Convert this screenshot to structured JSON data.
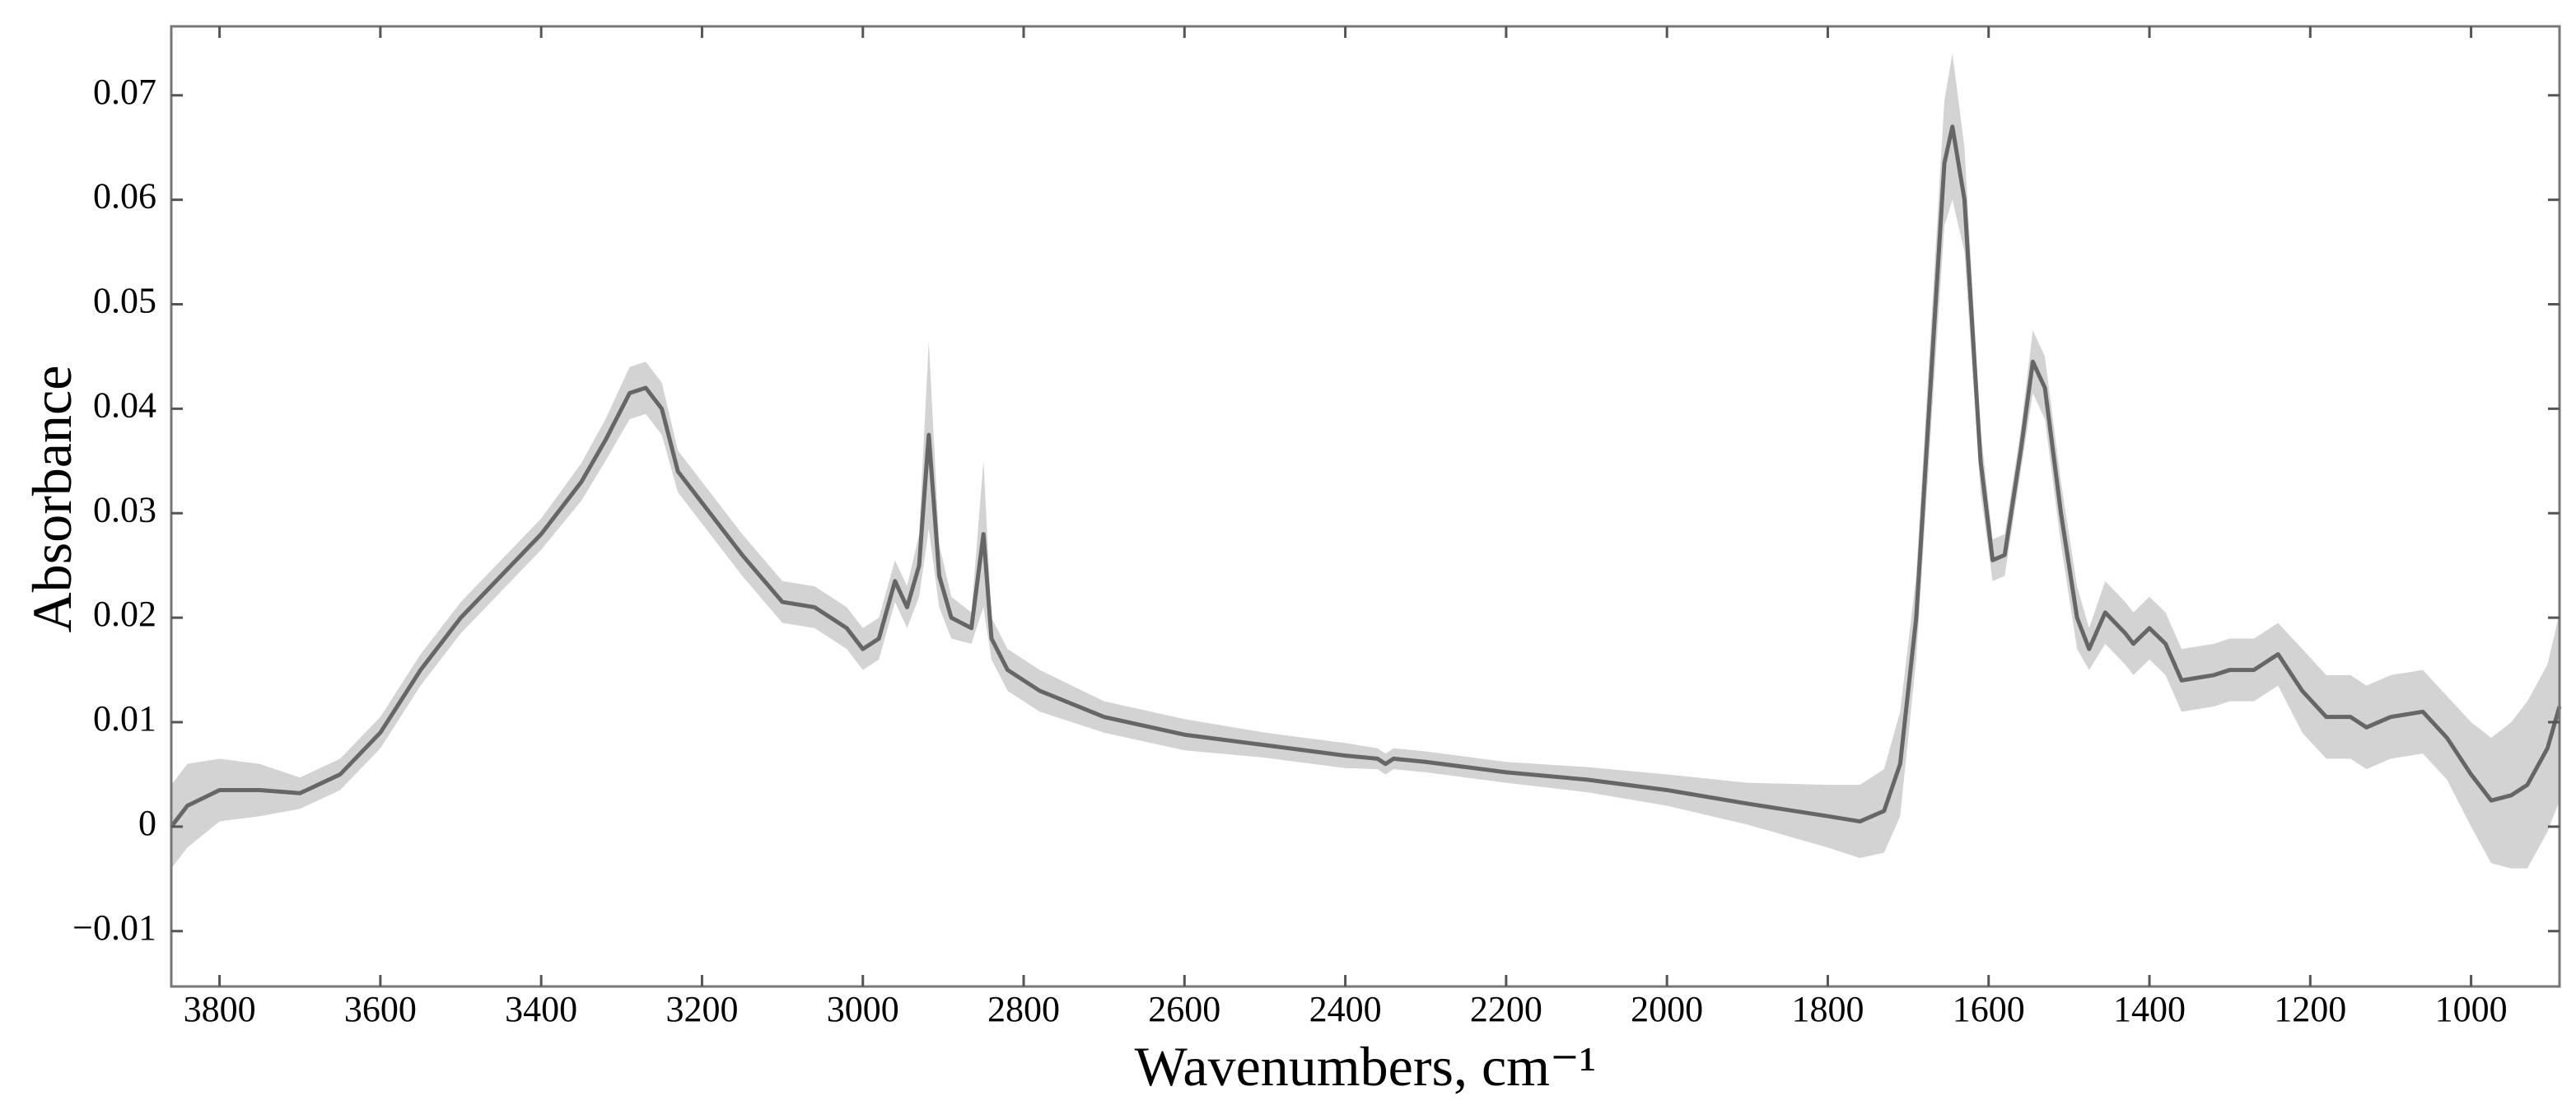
{
  "chart_data": {
    "type": "line",
    "xlabel": "Wavenumbers, cm⁻¹",
    "ylabel": "Absorbance",
    "x": [
      3860,
      3840,
      3800,
      3750,
      3700,
      3650,
      3600,
      3550,
      3500,
      3450,
      3400,
      3350,
      3320,
      3290,
      3270,
      3250,
      3230,
      3200,
      3150,
      3100,
      3060,
      3020,
      3000,
      2980,
      2960,
      2945,
      2930,
      2918,
      2905,
      2890,
      2865,
      2850,
      2840,
      2820,
      2780,
      2700,
      2600,
      2500,
      2400,
      2360,
      2350,
      2340,
      2300,
      2200,
      2100,
      2000,
      1900,
      1800,
      1760,
      1730,
      1710,
      1690,
      1670,
      1655,
      1645,
      1630,
      1610,
      1595,
      1580,
      1560,
      1545,
      1530,
      1510,
      1490,
      1475,
      1455,
      1430,
      1420,
      1400,
      1380,
      1360,
      1320,
      1300,
      1270,
      1240,
      1210,
      1180,
      1150,
      1130,
      1100,
      1060,
      1030,
      1000,
      975,
      950,
      930,
      905,
      890
    ],
    "series": [
      {
        "color": "#666666",
        "values": [
          0.0,
          0.002,
          0.0035,
          0.0035,
          0.0032,
          0.005,
          0.009,
          0.015,
          0.02,
          0.024,
          0.028,
          0.033,
          0.037,
          0.0415,
          0.042,
          0.04,
          0.034,
          0.031,
          0.026,
          0.0215,
          0.021,
          0.019,
          0.017,
          0.018,
          0.0235,
          0.021,
          0.025,
          0.0375,
          0.024,
          0.02,
          0.019,
          0.028,
          0.018,
          0.015,
          0.013,
          0.0105,
          0.0088,
          0.0078,
          0.0068,
          0.0065,
          0.006,
          0.0065,
          0.0062,
          0.0052,
          0.0045,
          0.0035,
          0.0022,
          0.001,
          0.0005,
          0.0015,
          0.006,
          0.02,
          0.045,
          0.0635,
          0.067,
          0.06,
          0.035,
          0.0255,
          0.026,
          0.036,
          0.0445,
          0.042,
          0.03,
          0.02,
          0.017,
          0.0205,
          0.0185,
          0.0175,
          0.019,
          0.0175,
          0.014,
          0.0145,
          0.015,
          0.015,
          0.0165,
          0.013,
          0.0105,
          0.0105,
          0.0095,
          0.0105,
          0.011,
          0.0085,
          0.005,
          0.0025,
          0.003,
          0.004,
          0.0075,
          0.0115
        ]
      }
    ],
    "band": {
      "color": "#d3d3d3",
      "lower": [
        -0.004,
        -0.002,
        0.0005,
        0.001,
        0.0017,
        0.0035,
        0.0075,
        0.0135,
        0.0185,
        0.0225,
        0.0265,
        0.0312,
        0.035,
        0.039,
        0.0395,
        0.0375,
        0.032,
        0.029,
        0.024,
        0.0195,
        0.019,
        0.017,
        0.015,
        0.016,
        0.0215,
        0.019,
        0.022,
        0.0285,
        0.021,
        0.018,
        0.0175,
        0.021,
        0.016,
        0.013,
        0.011,
        0.009,
        0.0073,
        0.0066,
        0.0056,
        0.0055,
        0.005,
        0.0055,
        0.0052,
        0.0042,
        0.0033,
        0.002,
        0.0002,
        -0.002,
        -0.003,
        -0.0025,
        0.001,
        0.016,
        0.04,
        0.0575,
        0.06,
        0.055,
        0.032,
        0.0235,
        0.024,
        0.034,
        0.0415,
        0.039,
        0.027,
        0.017,
        0.015,
        0.0175,
        0.0155,
        0.0145,
        0.016,
        0.0145,
        0.011,
        0.0115,
        0.012,
        0.012,
        0.0135,
        0.009,
        0.0065,
        0.0065,
        0.0055,
        0.0065,
        0.007,
        0.0045,
        0.0,
        -0.0035,
        -0.004,
        -0.004,
        -0.0005,
        0.0025
      ],
      "upper": [
        0.004,
        0.006,
        0.0065,
        0.006,
        0.0047,
        0.0065,
        0.0105,
        0.0165,
        0.0215,
        0.0255,
        0.0295,
        0.0348,
        0.039,
        0.044,
        0.0445,
        0.0425,
        0.036,
        0.033,
        0.028,
        0.0235,
        0.023,
        0.021,
        0.019,
        0.02,
        0.0255,
        0.023,
        0.028,
        0.0465,
        0.027,
        0.022,
        0.0205,
        0.035,
        0.02,
        0.017,
        0.015,
        0.012,
        0.0103,
        0.009,
        0.008,
        0.0075,
        0.007,
        0.0075,
        0.0072,
        0.0062,
        0.0057,
        0.005,
        0.0042,
        0.004,
        0.004,
        0.0055,
        0.011,
        0.024,
        0.05,
        0.0695,
        0.074,
        0.065,
        0.038,
        0.0275,
        0.028,
        0.038,
        0.0475,
        0.045,
        0.033,
        0.023,
        0.019,
        0.0235,
        0.0215,
        0.0205,
        0.022,
        0.0205,
        0.017,
        0.0175,
        0.018,
        0.018,
        0.0195,
        0.017,
        0.0145,
        0.0145,
        0.0135,
        0.0145,
        0.015,
        0.0125,
        0.01,
        0.0085,
        0.01,
        0.012,
        0.0155,
        0.0205
      ]
    },
    "xlim": [
      3860,
      890
    ],
    "ylim": [
      -0.0153,
      0.0766
    ],
    "xticks": [
      3800,
      3600,
      3400,
      3200,
      3000,
      2800,
      2600,
      2400,
      2200,
      2000,
      1800,
      1600,
      1400,
      1200,
      1000
    ],
    "yticks": [
      {
        "value": -0.01,
        "label": "−0.01"
      },
      0,
      0.01,
      0.02,
      0.03,
      0.04,
      0.05,
      0.06,
      0.07
    ],
    "grid": false
  }
}
